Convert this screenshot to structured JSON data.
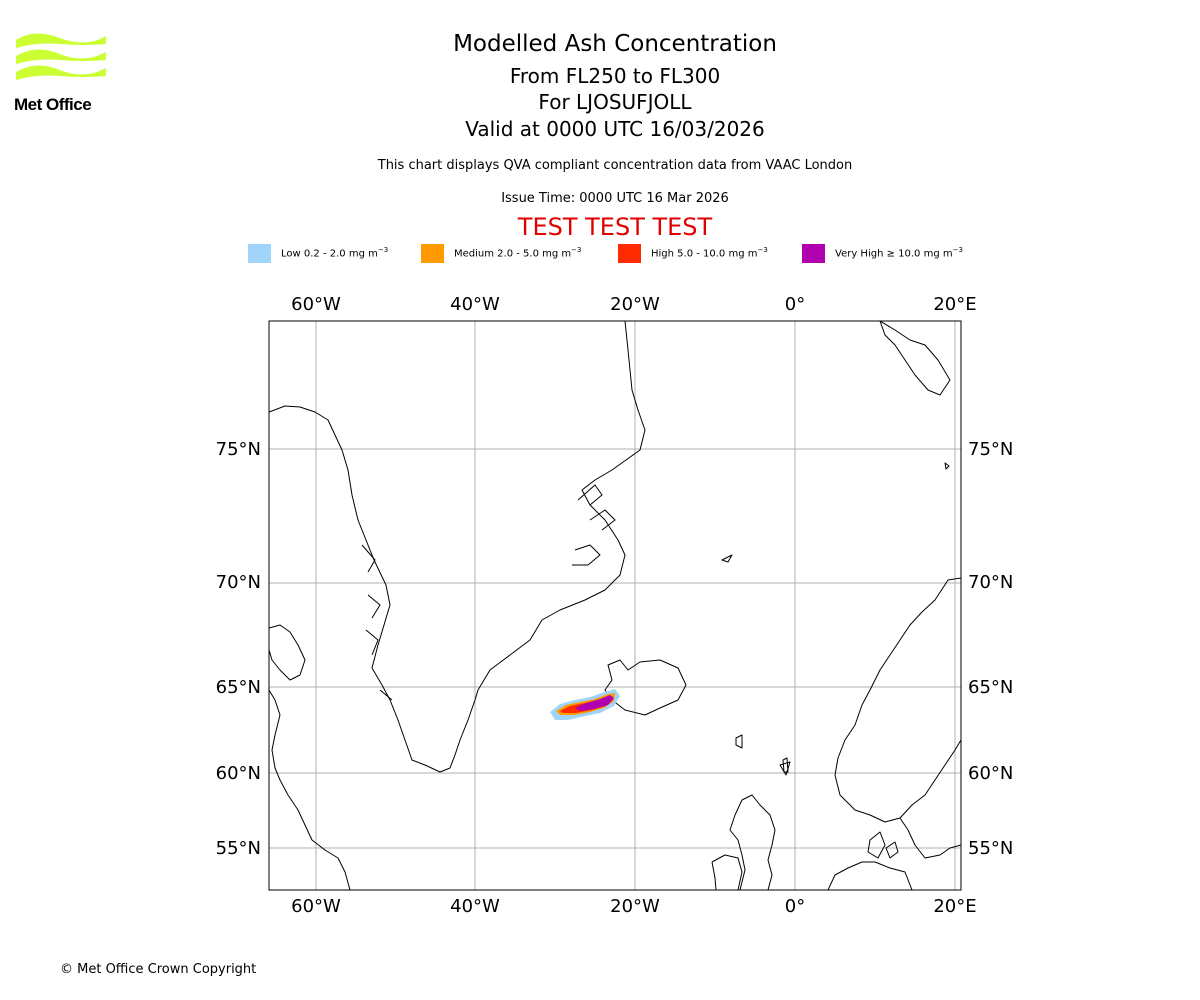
{
  "logo": {
    "text": "Met Office",
    "color": "#ccff33"
  },
  "header": {
    "title": "Modelled Ash Concentration",
    "levels": "From FL250 to FL300",
    "volcano": "For LJOSUFJOLL",
    "valid": "Valid at 0000 UTC 16/03/2026",
    "description": "This chart displays QVA compliant concentration data from VAAC London",
    "issue_time": "Issue Time: 0000 UTC 16 Mar 2026",
    "test_banner": "TEST TEST TEST"
  },
  "legend": [
    {
      "label": "Low 0.2 - 2.0 mg m",
      "color": "#a0d4fa"
    },
    {
      "label": "Medium 2.0 - 5.0 mg m",
      "color": "#ff9a00"
    },
    {
      "label": "High 5.0 - 10.0 mg m",
      "color": "#ff2a00"
    },
    {
      "label": "Very High ≥ 10.0 mg m",
      "color": "#b000b0"
    }
  ],
  "legend_unit_exponent": "−3",
  "map": {
    "lon_ticks": [
      "60°W",
      "40°W",
      "20°W",
      "0°",
      "20°E"
    ],
    "lat_ticks": [
      "75°N",
      "70°N",
      "65°N",
      "60°N",
      "55°N"
    ],
    "ash_plume_levels": [
      "low",
      "medium",
      "high",
      "very-high"
    ]
  },
  "footer": {
    "copyright": "© Met Office Crown Copyright"
  }
}
